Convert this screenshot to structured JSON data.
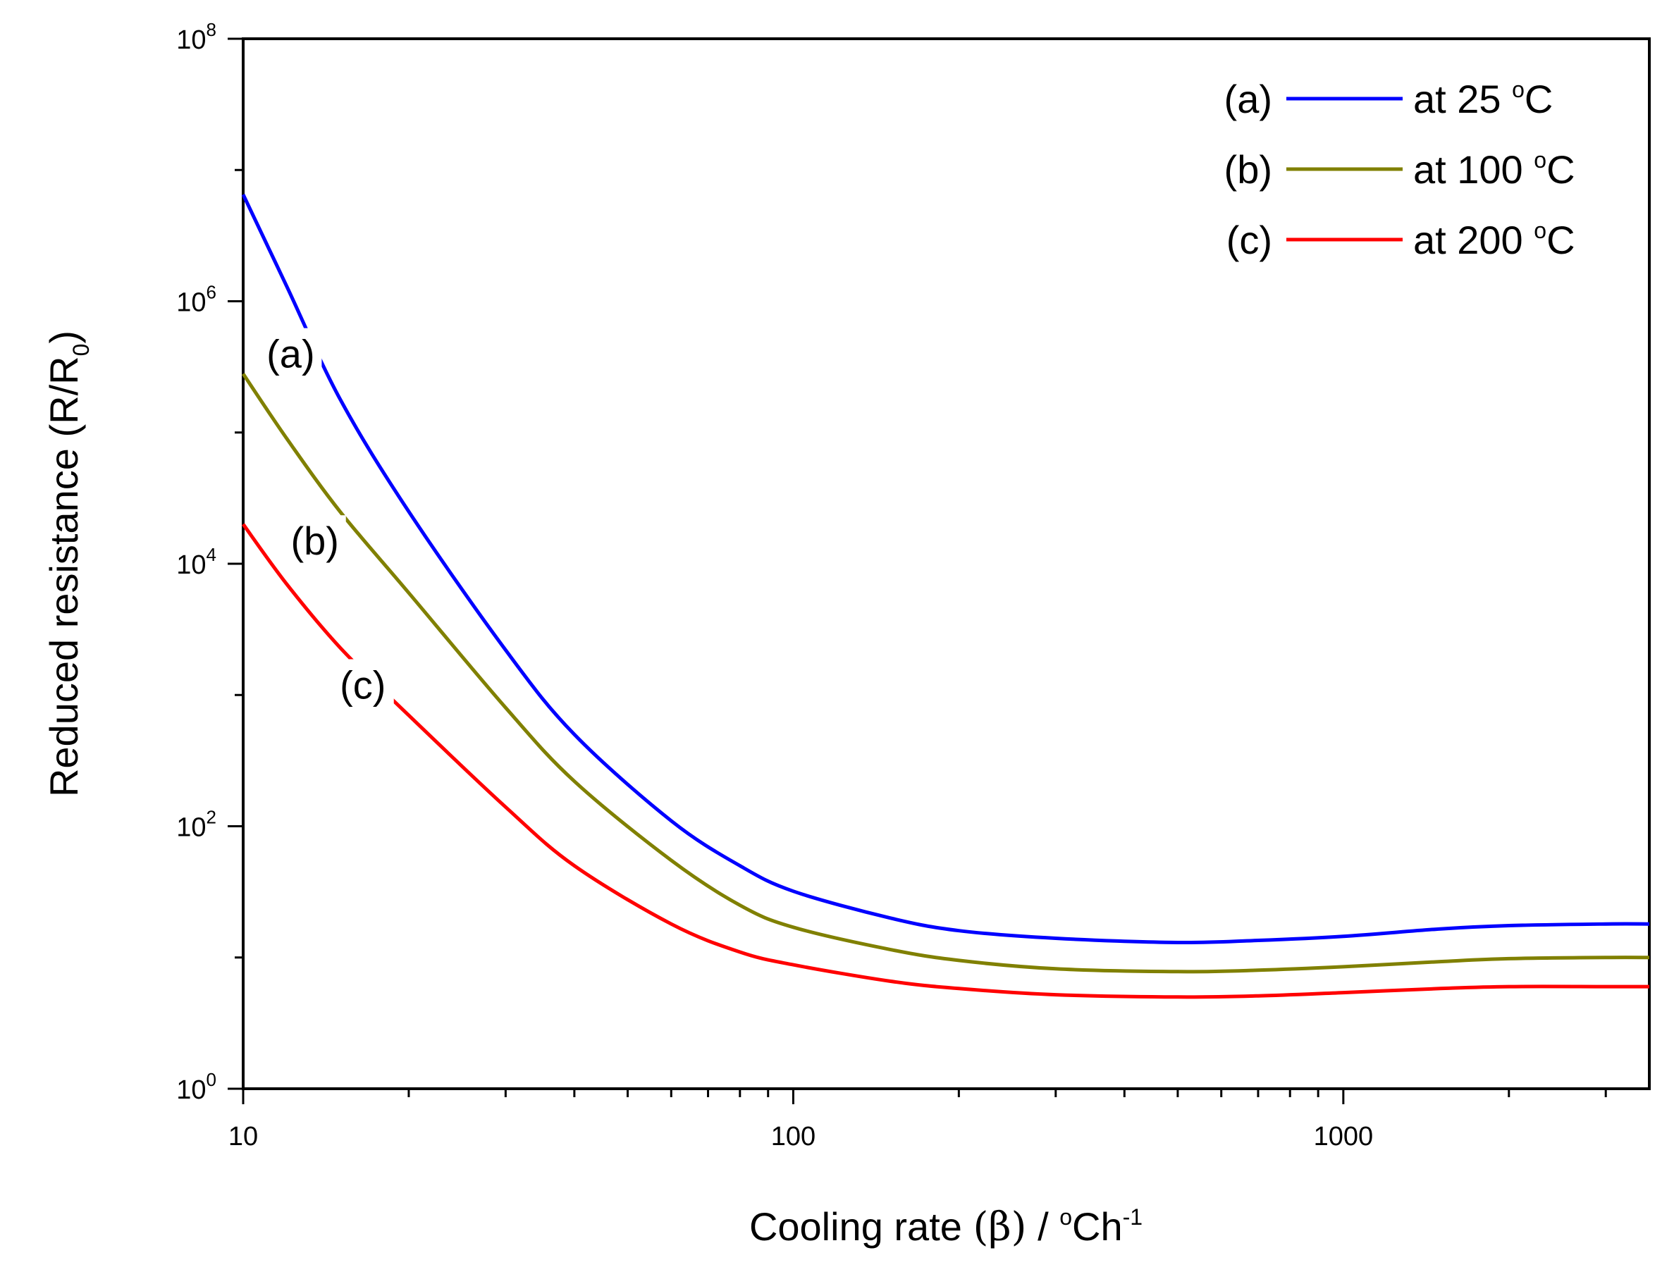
{
  "chart_data": {
    "type": "line",
    "xscale": "log",
    "yscale": "log",
    "xlim": [
      10,
      3600
    ],
    "ylim": [
      1,
      100000000
    ],
    "xlabel": {
      "prefix": "Cooling rate ",
      "symbol": "(β)",
      "mid": " / ",
      "deg": "o",
      "unit": "Ch",
      "exp": "-1"
    },
    "ylabel": {
      "main": "Reduced resistance (R/R",
      "sub": "0",
      "close": ")"
    },
    "xticks": [
      {
        "value": 10,
        "label": "10"
      },
      {
        "value": 100,
        "label": "100"
      },
      {
        "value": 1000,
        "label": "1000"
      }
    ],
    "yticks": [
      {
        "value": 1,
        "base": "10",
        "exp": "0"
      },
      {
        "value": 100,
        "base": "10",
        "exp": "2"
      },
      {
        "value": 10000,
        "base": "10",
        "exp": "4"
      },
      {
        "value": 1000000,
        "base": "10",
        "exp": "6"
      },
      {
        "value": 100000000,
        "base": "10",
        "exp": "8"
      }
    ],
    "series": [
      {
        "key": "a",
        "tag": "(a)",
        "name": "at 25 ",
        "deg": "o",
        "unit": "C",
        "color": "#0000ff",
        "x": [
          10,
          12,
          15,
          20,
          30,
          40,
          60,
          80,
          100,
          150,
          200,
          300,
          500,
          700,
          1000,
          1500,
          2000,
          3000,
          3600
        ],
        "y": [
          6500000,
          1300000,
          180000,
          25000,
          2200,
          500,
          110,
          50,
          32,
          20,
          16,
          14,
          13,
          13.5,
          14.5,
          16.5,
          17.5,
          18,
          18
        ]
      },
      {
        "key": "b",
        "tag": "(b)",
        "name": "at 100 ",
        "deg": "o",
        "unit": "C",
        "color": "#808000",
        "x": [
          10,
          12,
          15,
          20,
          30,
          40,
          60,
          80,
          100,
          150,
          200,
          300,
          500,
          700,
          1000,
          1500,
          2000,
          3000,
          3600
        ],
        "y": [
          280000,
          90000,
          25000,
          6000,
          800,
          220,
          55,
          25,
          17,
          11.5,
          9.5,
          8.2,
          7.8,
          8,
          8.5,
          9.3,
          9.8,
          10,
          10
        ]
      },
      {
        "key": "c",
        "tag": "(c)",
        "name": "at 200 ",
        "deg": "o",
        "unit": "C",
        "color": "#ff0000",
        "x": [
          10,
          12,
          15,
          20,
          30,
          40,
          60,
          80,
          100,
          150,
          200,
          300,
          500,
          700,
          1000,
          1500,
          2000,
          3000,
          3600
        ],
        "y": [
          20000,
          7000,
          2300,
          700,
          140,
          50,
          18,
          11,
          8.8,
          6.6,
          5.8,
          5.2,
          5,
          5.1,
          5.4,
          5.8,
          6,
          6,
          6
        ]
      }
    ],
    "annotations": [
      {
        "series": "a",
        "label": "(a)",
        "x": 12.2,
        "y": 400000
      },
      {
        "series": "b",
        "label": "(b)",
        "x": 13.5,
        "y": 15000
      },
      {
        "series": "c",
        "label": "(c)",
        "x": 16.5,
        "y": 1200
      }
    ],
    "legend": {
      "position": "top-right"
    }
  }
}
